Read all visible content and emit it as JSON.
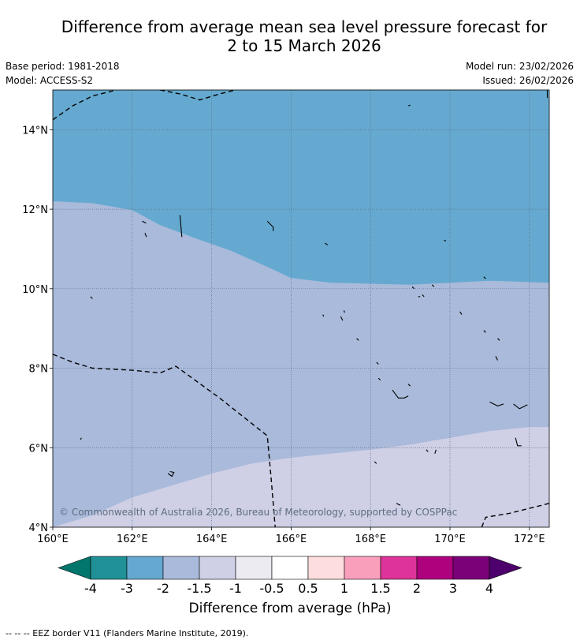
{
  "title": {
    "line1": "Difference from average mean sea level pressure forecast for",
    "line2": "2 to 15 March 2026"
  },
  "meta": {
    "base_period": "Base period: 1981-2018",
    "model": "Model: ACCESS-S2",
    "model_run": "Model run: 23/02/2026",
    "issued": "Issued: 26/02/2026"
  },
  "map": {
    "lat_ticks": [
      "14°N",
      "12°N",
      "10°N",
      "8°N",
      "6°N",
      "4°N"
    ],
    "lon_ticks": [
      "160°E",
      "162°E",
      "164°E",
      "166°E",
      "168°E",
      "170°E",
      "172°E"
    ],
    "lon_range": [
      160,
      172.5
    ],
    "lat_range": [
      4,
      15
    ],
    "copyright": "© Commonwealth of Australia 2026, Bureau of Meteorology, supported by COSPPac",
    "zones": [
      {
        "bin": "-3 to -2",
        "color": "#65a9d0",
        "boundary_lat_by_lon": [
          [
            160,
            12.2
          ],
          [
            161,
            12.15
          ],
          [
            162,
            11.98
          ],
          [
            162.7,
            11.6
          ],
          [
            163.5,
            11.3
          ],
          [
            164.5,
            10.95
          ],
          [
            165.4,
            10.55
          ],
          [
            166,
            10.27
          ],
          [
            167,
            10.15
          ],
          [
            169,
            10.1
          ],
          [
            170,
            10.15
          ],
          [
            171,
            10.2
          ],
          [
            172.5,
            10.15
          ]
        ]
      },
      {
        "bin": "-2 to -1.5",
        "color": "#a9badb",
        "boundary_lat_by_lon": [
          [
            160,
            4.0
          ],
          [
            161,
            4.3
          ],
          [
            162,
            4.75
          ],
          [
            163,
            5.05
          ],
          [
            164,
            5.35
          ],
          [
            165,
            5.6
          ],
          [
            166,
            5.75
          ],
          [
            167,
            5.85
          ],
          [
            168,
            5.95
          ],
          [
            169,
            6.08
          ],
          [
            170,
            6.25
          ],
          [
            171,
            6.42
          ],
          [
            172,
            6.52
          ],
          [
            172.5,
            6.52
          ]
        ]
      },
      {
        "bin": "-1.5 to -1",
        "color": "#cfcfe6"
      }
    ],
    "eez_lines": [
      [
        [
          160,
          14.25
        ],
        [
          160.5,
          14.6
        ],
        [
          161,
          14.85
        ],
        [
          161.6,
          15.0
        ]
      ],
      [
        [
          162.7,
          15.0
        ],
        [
          163.2,
          14.9
        ],
        [
          163.7,
          14.75
        ],
        [
          164.2,
          14.9
        ],
        [
          164.6,
          15.0
        ]
      ],
      [
        [
          160,
          8.35
        ],
        [
          160.5,
          8.15
        ],
        [
          161,
          8.0
        ],
        [
          162,
          7.95
        ],
        [
          162.7,
          7.88
        ],
        [
          163.1,
          8.05
        ],
        [
          164.2,
          7.25
        ],
        [
          165.4,
          6.3
        ],
        [
          165.5,
          5.2
        ],
        [
          165.6,
          4.0
        ]
      ],
      [
        [
          170.8,
          4.0
        ],
        [
          170.9,
          4.25
        ],
        [
          171.5,
          4.35
        ],
        [
          172.5,
          4.6
        ]
      ]
    ],
    "coastlines": [
      [
        [
          160.95,
          9.8
        ],
        [
          161.0,
          9.75
        ]
      ],
      [
        [
          162.25,
          11.7
        ],
        [
          162.35,
          11.65
        ]
      ],
      [
        [
          162.32,
          11.4
        ],
        [
          162.36,
          11.3
        ]
      ],
      [
        [
          163.2,
          11.85
        ],
        [
          163.25,
          11.3
        ]
      ],
      [
        [
          165.4,
          11.7
        ],
        [
          165.55,
          11.55
        ],
        [
          165.55,
          11.45
        ]
      ],
      [
        [
          166.85,
          11.15
        ],
        [
          166.92,
          11.1
        ]
      ],
      [
        [
          168.95,
          14.6
        ],
        [
          169.0,
          14.62
        ]
      ],
      [
        [
          169.85,
          11.22
        ],
        [
          169.9,
          11.2
        ]
      ],
      [
        [
          160.7,
          6.2
        ],
        [
          160.72,
          6.25
        ]
      ],
      [
        [
          162.9,
          5.35
        ],
        [
          163.0,
          5.28
        ],
        [
          163.05,
          5.38
        ],
        [
          162.95,
          5.4
        ]
      ],
      [
        [
          166.8,
          9.35
        ],
        [
          166.82,
          9.3
        ]
      ],
      [
        [
          167.25,
          9.3
        ],
        [
          167.3,
          9.2
        ]
      ],
      [
        [
          167.33,
          9.45
        ],
        [
          167.35,
          9.4
        ]
      ],
      [
        [
          167.65,
          8.75
        ],
        [
          167.7,
          8.7
        ]
      ],
      [
        [
          168.15,
          8.15
        ],
        [
          168.2,
          8.1
        ]
      ],
      [
        [
          168.2,
          7.75
        ],
        [
          168.25,
          7.7
        ]
      ],
      [
        [
          168.55,
          7.45
        ],
        [
          168.7,
          7.25
        ],
        [
          168.85,
          7.25
        ],
        [
          168.95,
          7.3
        ]
      ],
      [
        [
          168.95,
          7.6
        ],
        [
          169.0,
          7.55
        ]
      ],
      [
        [
          169.05,
          10.05
        ],
        [
          169.1,
          10.0
        ]
      ],
      [
        [
          169.2,
          9.8
        ],
        [
          169.25,
          9.8
        ]
      ],
      [
        [
          169.3,
          9.85
        ],
        [
          169.35,
          9.8
        ]
      ],
      [
        [
          169.55,
          10.1
        ],
        [
          169.6,
          10.05
        ]
      ],
      [
        [
          170.25,
          9.42
        ],
        [
          170.3,
          9.35
        ]
      ],
      [
        [
          170.85,
          10.3
        ],
        [
          170.9,
          10.25
        ]
      ],
      [
        [
          170.85,
          8.95
        ],
        [
          170.9,
          8.9
        ]
      ],
      [
        [
          171.2,
          8.75
        ],
        [
          171.25,
          8.7
        ]
      ],
      [
        [
          171.15,
          8.3
        ],
        [
          171.2,
          8.2
        ]
      ],
      [
        [
          171.0,
          7.15
        ],
        [
          171.2,
          7.05
        ],
        [
          171.35,
          7.1
        ]
      ],
      [
        [
          171.6,
          7.1
        ],
        [
          171.75,
          6.98
        ],
        [
          171.95,
          7.08
        ]
      ],
      [
        [
          171.65,
          6.25
        ],
        [
          171.7,
          6.05
        ],
        [
          171.8,
          6.05
        ]
      ],
      [
        [
          169.65,
          5.95
        ],
        [
          169.62,
          5.85
        ]
      ],
      [
        [
          169.4,
          5.95
        ],
        [
          169.45,
          5.9
        ]
      ],
      [
        [
          168.1,
          5.65
        ],
        [
          168.15,
          5.6
        ]
      ],
      [
        [
          168.65,
          4.6
        ],
        [
          168.75,
          4.55
        ]
      ],
      [
        [
          172.45,
          15.0
        ],
        [
          172.45,
          14.8
        ]
      ]
    ]
  },
  "colorbar": {
    "bins": [
      {
        "color": "#00766c"
      },
      {
        "color": "#1f9197"
      },
      {
        "color": "#65a9d0"
      },
      {
        "color": "#a9badb"
      },
      {
        "color": "#cfcfe6"
      },
      {
        "color": "#ecebf2"
      },
      {
        "color": "#ffffff"
      },
      {
        "color": "#fddddd"
      },
      {
        "color": "#f99fbc"
      },
      {
        "color": "#dd3499"
      },
      {
        "color": "#ae017e"
      },
      {
        "color": "#7a0177"
      },
      {
        "color": "#4d006b"
      }
    ],
    "tick_labels": [
      "-4",
      "-3",
      "-2",
      "-1.5",
      "-1",
      "-0.5",
      "0.5",
      "1",
      "1.5",
      "2",
      "3",
      "4"
    ],
    "label": "Difference from average (hPa)"
  },
  "footer": "--  --  -- EEZ border V11 (Flanders Marine Institute, 2019)."
}
